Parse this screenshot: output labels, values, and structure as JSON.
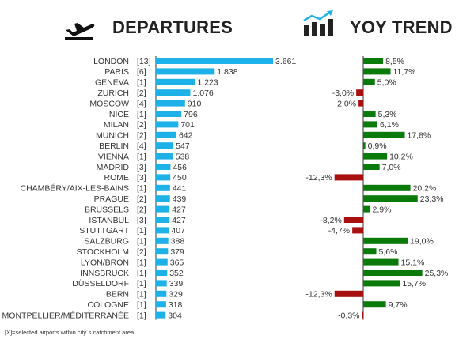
{
  "headers": {
    "departures": "DEPARTURES",
    "yoy_trend": "YOY TREND"
  },
  "icons": {
    "departures": "plane-takeoff-icon",
    "yoy_trend": "bar-chart-trend-icon"
  },
  "footnote": "[X]=selected airports within city´s catchment area",
  "colors": {
    "departures_bar": "#1eb1e8",
    "yoy_positive": "#0a7a0a",
    "yoy_negative": "#a80f0f",
    "axis": "#333333",
    "text": "#333333"
  },
  "chart_data": [
    {
      "type": "bar",
      "orientation": "horizontal",
      "categories": [
        "LONDON",
        "PARIS",
        "GENEVA",
        "ZURICH",
        "MOSCOW",
        "NICE",
        "MILAN",
        "MUNICH",
        "BERLIN",
        "VIENNA",
        "MADRID",
        "ROME",
        "CHAMBÉRY/AIX-LES-BAINS",
        "PRAGUE",
        "BRUSSELS",
        "ISTANBUL",
        "STUTTGART",
        "SALZBURG",
        "STOCKHOLM",
        "LYON/BRON",
        "INNSBRUCK",
        "DÜSSELDORF",
        "BERN",
        "COLOGNE",
        "MONTPELLIER/MÉDITERRANÉE"
      ],
      "airport_counts": [
        "[13]",
        "[6]",
        "[1]",
        "[2]",
        "[4]",
        "[1]",
        "[2]",
        "[2]",
        "[4]",
        "[1]",
        "[3]",
        "[3]",
        "[1]",
        "[2]",
        "[2]",
        "[3]",
        "[1]",
        "[1]",
        "[2]",
        "[1]",
        "[1]",
        "[1]",
        "[1]",
        "[1]",
        "[1]"
      ],
      "values": [
        3661,
        1838,
        1223,
        1076,
        910,
        796,
        701,
        642,
        547,
        538,
        456,
        450,
        441,
        439,
        427,
        427,
        407,
        388,
        379,
        365,
        352,
        339,
        329,
        318,
        304
      ],
      "value_labels": [
        "3.661",
        "1.838",
        "1.223",
        "1.076",
        "910",
        "796",
        "701",
        "642",
        "547",
        "538",
        "456",
        "450",
        "441",
        "439",
        "427",
        "427",
        "407",
        "388",
        "379",
        "365",
        "352",
        "339",
        "329",
        "318",
        "304"
      ],
      "xlim": [
        0,
        3661
      ]
    },
    {
      "type": "bar",
      "orientation": "horizontal",
      "categories": [
        "LONDON",
        "PARIS",
        "GENEVA",
        "ZURICH",
        "MOSCOW",
        "NICE",
        "MILAN",
        "MUNICH",
        "BERLIN",
        "VIENNA",
        "MADRID",
        "ROME",
        "CHAMBÉRY/AIX-LES-BAINS",
        "PRAGUE",
        "BRUSSELS",
        "ISTANBUL",
        "STUTTGART",
        "SALZBURG",
        "STOCKHOLM",
        "LYON/BRON",
        "INNSBRUCK",
        "DÜSSELDORF",
        "BERN",
        "COLOGNE",
        "MONTPELLIER/MÉDITERRANÉE"
      ],
      "values": [
        8.5,
        11.7,
        5.0,
        -3.0,
        -2.0,
        5.3,
        6.1,
        17.8,
        0.9,
        10.2,
        7.0,
        -12.3,
        20.2,
        23.3,
        2.9,
        -8.2,
        -4.7,
        19.0,
        5.6,
        15.1,
        25.3,
        15.7,
        -12.3,
        9.7,
        -0.3
      ],
      "value_labels": [
        "8,5%",
        "11,7%",
        "5,0%",
        "-3,0%",
        "-2,0%",
        "5,3%",
        "6,1%",
        "17,8%",
        "0,9%",
        "10,2%",
        "7,0%",
        "-12,3%",
        "20,2%",
        "23,3%",
        "2,9%",
        "-8,2%",
        "-4,7%",
        "19,0%",
        "5,6%",
        "15,1%",
        "25,3%",
        "15,7%",
        "-12,3%",
        "9,7%",
        "-0,3%"
      ],
      "xlim": [
        -12.3,
        25.3
      ]
    }
  ]
}
